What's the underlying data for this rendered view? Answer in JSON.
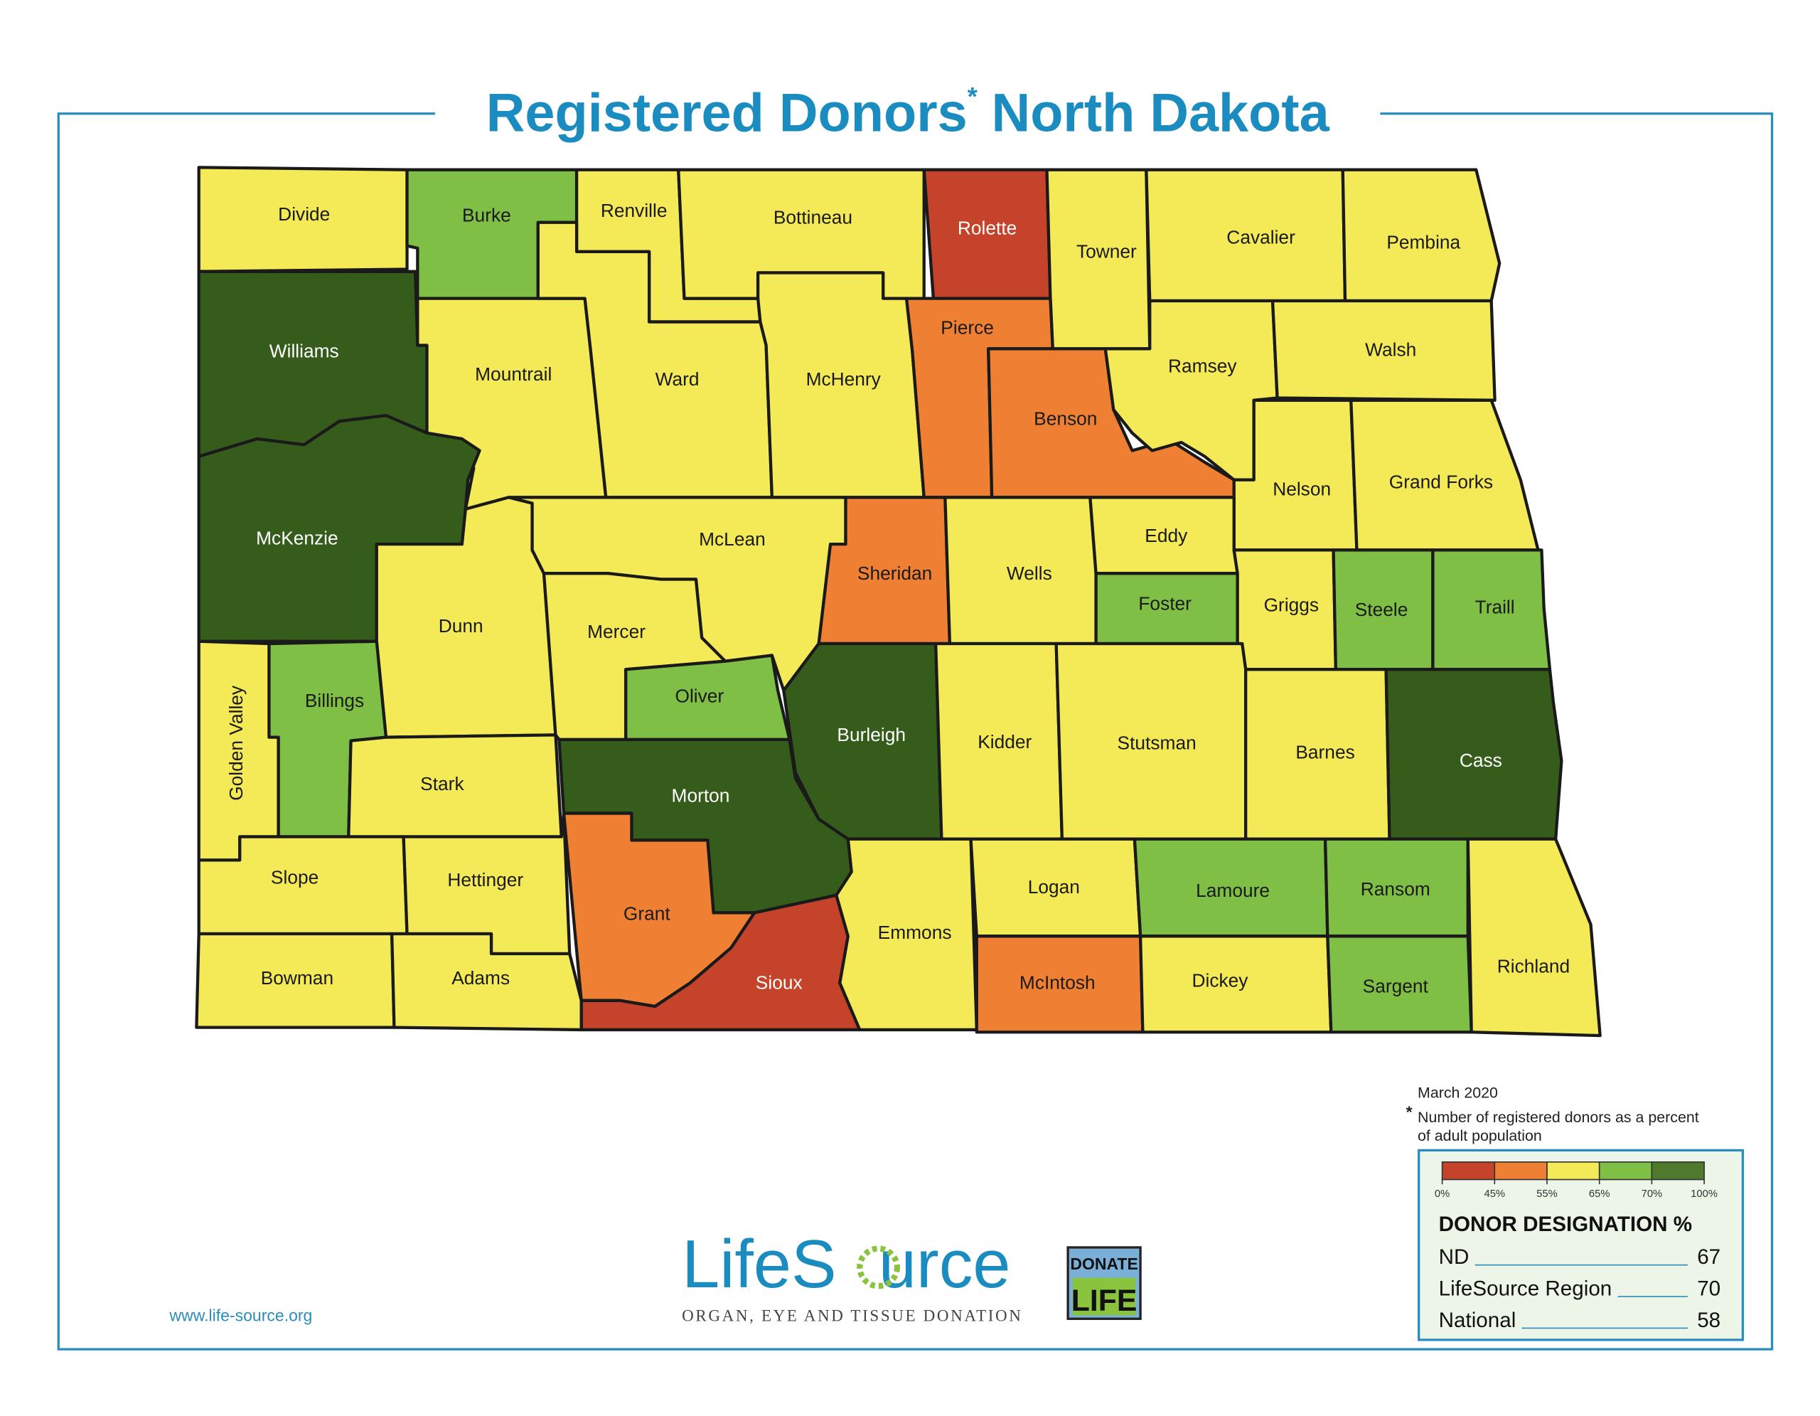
{
  "title": "Registered Donors",
  "title_mark": "*",
  "title_rest": "North Dakota",
  "counties": [
    {
      "name": "Divide",
      "color": "#f4ea57"
    },
    {
      "name": "Burke",
      "color": "#7fbf45"
    },
    {
      "name": "Renville",
      "color": "#f4ea57"
    },
    {
      "name": "Bottineau",
      "color": "#f4ea57"
    },
    {
      "name": "Rolette",
      "color": "#c5432b"
    },
    {
      "name": "Towner",
      "color": "#f4ea57"
    },
    {
      "name": "Cavalier",
      "color": "#f4ea57"
    },
    {
      "name": "Pembina",
      "color": "#f4ea57"
    },
    {
      "name": "Williams",
      "color": "#365c1c"
    },
    {
      "name": "Mountrail",
      "color": "#f4ea57"
    },
    {
      "name": "Ward",
      "color": "#f4ea57"
    },
    {
      "name": "McHenry",
      "color": "#f4ea57"
    },
    {
      "name": "Pierce",
      "color": "#ef8033"
    },
    {
      "name": "Benson",
      "color": "#ef8033"
    },
    {
      "name": "Ramsey",
      "color": "#f4ea57"
    },
    {
      "name": "Walsh",
      "color": "#f4ea57"
    },
    {
      "name": "Nelson",
      "color": "#f4ea57"
    },
    {
      "name": "Grand Forks",
      "color": "#f4ea57"
    },
    {
      "name": "McKenzie",
      "color": "#365c1c"
    },
    {
      "name": "Dunn",
      "color": "#f4ea57"
    },
    {
      "name": "McLean",
      "color": "#f4ea57"
    },
    {
      "name": "Sheridan",
      "color": "#ef8033"
    },
    {
      "name": "Wells",
      "color": "#f4ea57"
    },
    {
      "name": "Eddy",
      "color": "#f4ea57"
    },
    {
      "name": "Foster",
      "color": "#7fbf45"
    },
    {
      "name": "Griggs",
      "color": "#f4ea57"
    },
    {
      "name": "Steele",
      "color": "#7fbf45"
    },
    {
      "name": "Traill",
      "color": "#7fbf45"
    },
    {
      "name": "Mercer",
      "color": "#f4ea57"
    },
    {
      "name": "Oliver",
      "color": "#7fbf45"
    },
    {
      "name": "Billings",
      "color": "#7fbf45"
    },
    {
      "name": "Golden Valley",
      "color": "#f4ea57"
    },
    {
      "name": "Stark",
      "color": "#f4ea57"
    },
    {
      "name": "Burleigh",
      "color": "#365c1c"
    },
    {
      "name": "Morton",
      "color": "#365c1c"
    },
    {
      "name": "Kidder",
      "color": "#f4ea57"
    },
    {
      "name": "Stutsman",
      "color": "#f4ea57"
    },
    {
      "name": "Barnes",
      "color": "#f4ea57"
    },
    {
      "name": "Cass",
      "color": "#365c1c"
    },
    {
      "name": "Slope",
      "color": "#f4ea57"
    },
    {
      "name": "Hettinger",
      "color": "#f4ea57"
    },
    {
      "name": "Grant",
      "color": "#ef8033"
    },
    {
      "name": "Sioux",
      "color": "#c5432b"
    },
    {
      "name": "Emmons",
      "color": "#f4ea57"
    },
    {
      "name": "Logan",
      "color": "#f4ea57"
    },
    {
      "name": "McIntosh",
      "color": "#ef8033"
    },
    {
      "name": "Lamoure",
      "color": "#7fbf45"
    },
    {
      "name": "Ransom",
      "color": "#7fbf45"
    },
    {
      "name": "Dickey",
      "color": "#f4ea57"
    },
    {
      "name": "Sargent",
      "color": "#7fbf45"
    },
    {
      "name": "Richland",
      "color": "#f4ea57"
    },
    {
      "name": "Bowman",
      "color": "#f4ea57"
    },
    {
      "name": "Adams",
      "color": "#f4ea57"
    }
  ],
  "date": "March 2020",
  "footnote_mark": "*",
  "footnote": [
    "Number of registered donors as a percent",
    "of adult population"
  ],
  "legend": {
    "colors": [
      "#c5432b",
      "#ef8033",
      "#f4ea57",
      "#7fbf45",
      "#4f7a2e"
    ],
    "ticks": [
      {
        "value": 0,
        "label": "0%"
      },
      {
        "value": 45,
        "label": "45%"
      },
      {
        "value": 55,
        "label": "55%"
      },
      {
        "value": 65,
        "label": "65%"
      },
      {
        "value": 70,
        "label": "70%"
      },
      {
        "value": 100,
        "label": "100%"
      }
    ],
    "heading": "DONOR DESIGNATION %",
    "rows": [
      {
        "label": "ND",
        "value": 67
      },
      {
        "label": "LifeSource Region",
        "value": 70
      },
      {
        "label": "National",
        "value": 58
      }
    ]
  },
  "url": "www.life-source.org",
  "logo": [
    "LifeS",
    "urce"
  ],
  "tagline": "ORGAN, EYE AND TISSUE DONATION",
  "badge": [
    "DONATE",
    "LIFE"
  ]
}
